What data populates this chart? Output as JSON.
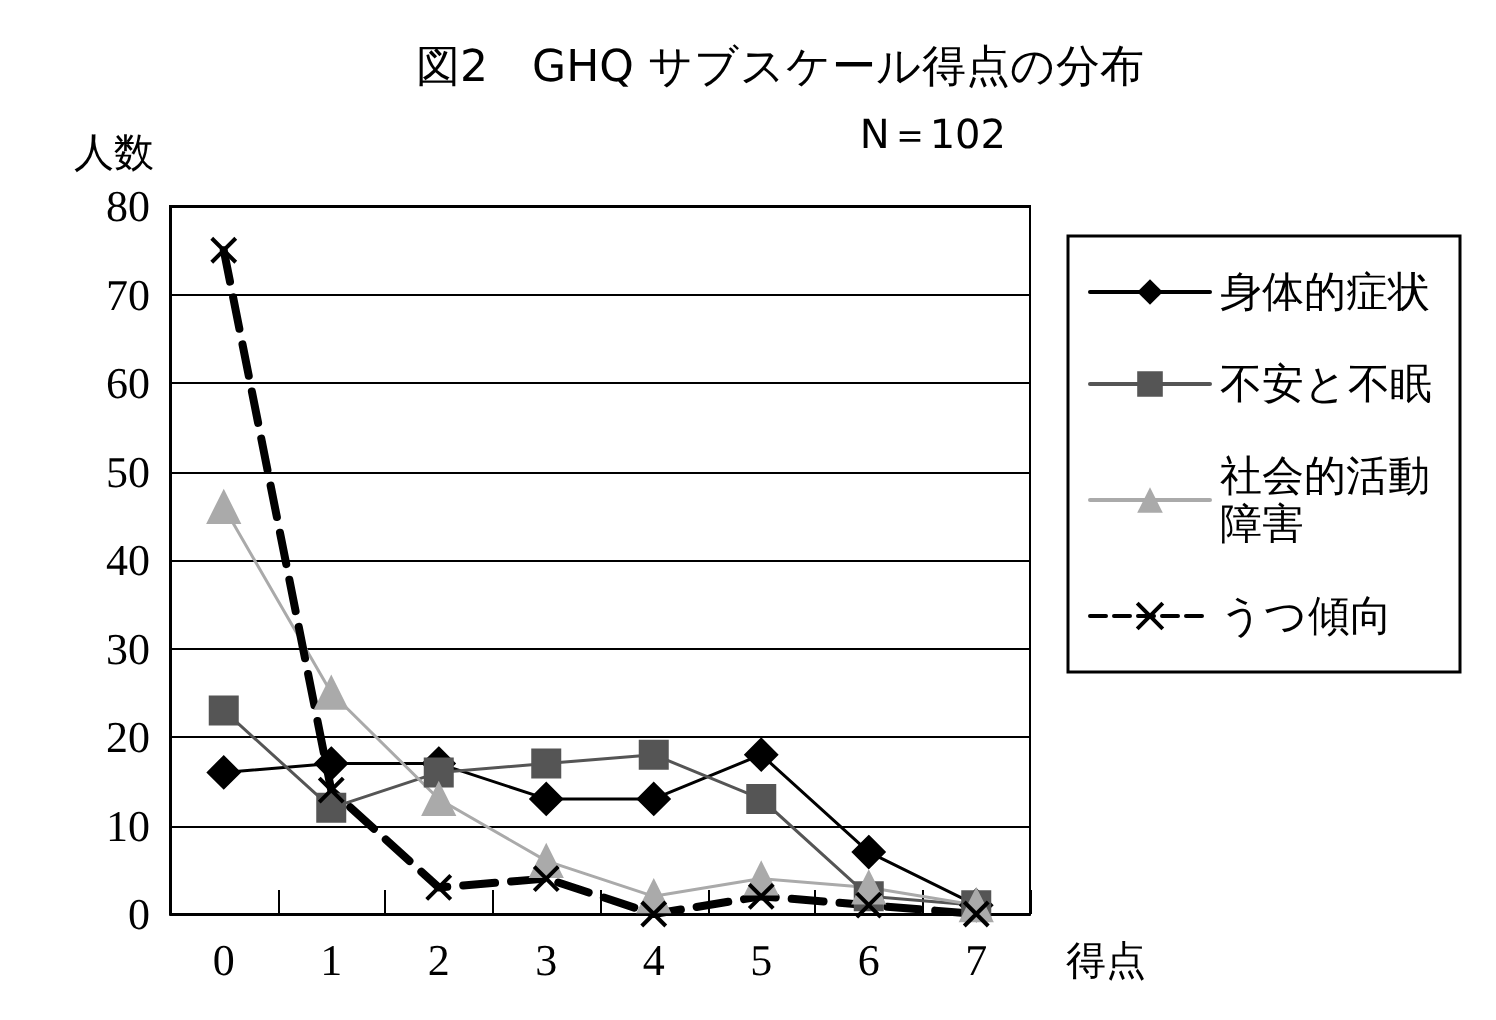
{
  "chart_data": {
    "type": "line",
    "title": "図2　GHQ サブスケール得点の分布",
    "subtitle": "N＝102",
    "xlabel": "得点",
    "ylabel": "人数",
    "categories": [
      "0",
      "1",
      "2",
      "3",
      "4",
      "5",
      "6",
      "7"
    ],
    "series": [
      {
        "name": "身体的症状",
        "color": "#000000",
        "marker": "diamond",
        "line_style": "solid",
        "values": [
          16,
          17,
          17,
          13,
          13,
          18,
          7,
          1
        ]
      },
      {
        "name": "不安と不眠",
        "color": "#555555",
        "marker": "square",
        "line_style": "solid",
        "values": [
          23,
          12,
          16,
          17,
          18,
          13,
          2,
          1
        ]
      },
      {
        "name": "社会的活動障害",
        "color": "#aaaaaa",
        "marker": "triangle",
        "line_style": "solid",
        "values": [
          46,
          25,
          13,
          6,
          2,
          4,
          3,
          1
        ]
      },
      {
        "name": "うつ傾向",
        "color": "#000000",
        "marker": "cross",
        "line_style": "dashed",
        "values": [
          75,
          14,
          3,
          4,
          0,
          2,
          1,
          0
        ]
      }
    ],
    "ylim": [
      0,
      80
    ],
    "yticks": [
      0,
      10,
      20,
      30,
      40,
      50,
      60,
      70,
      80
    ],
    "grid": "y",
    "legend": "right"
  }
}
